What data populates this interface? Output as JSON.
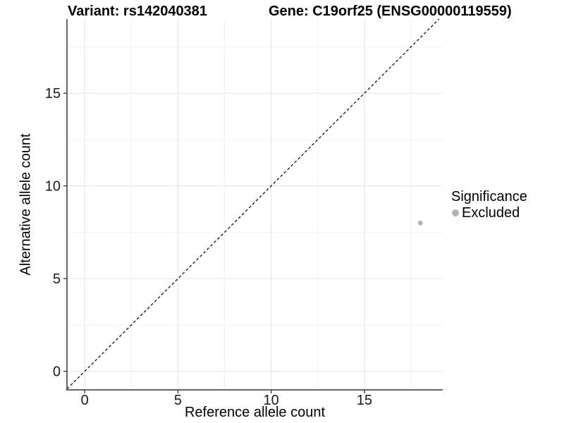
{
  "chart_data": {
    "type": "scatter",
    "title_left": "Variant: rs142040381",
    "title_right": "Gene: C19orf25 (ENSG00000119559)",
    "xlabel": "Reference allele count",
    "ylabel": "Alternative allele count",
    "xlim": [
      -0.95,
      19.2
    ],
    "ylim": [
      -1,
      19
    ],
    "xticks": [
      0,
      5,
      10,
      15
    ],
    "yticks": [
      0,
      5,
      10,
      15
    ],
    "xminor": [
      2.5,
      7.5,
      12.5,
      17.5
    ],
    "yminor": [
      2.5,
      7.5,
      12.5,
      17.5
    ],
    "grid": true,
    "identity_line": {
      "slope": 1,
      "intercept": 0,
      "style": "dashed",
      "color": "#000000"
    },
    "series": [
      {
        "name": "Excluded",
        "color": "#b3b3b3",
        "points": [
          {
            "x": 18,
            "y": 8
          }
        ]
      }
    ],
    "legend": {
      "title": "Significance",
      "position": "right",
      "items": [
        {
          "label": "Excluded",
          "color": "#b3b3b3",
          "marker": "circle-icon"
        }
      ]
    },
    "colors": {
      "grid_major": "#e3e3e3",
      "grid_minor": "#f2f2f2",
      "axis": "#333333",
      "tick_text": "#1a1a1a"
    }
  }
}
